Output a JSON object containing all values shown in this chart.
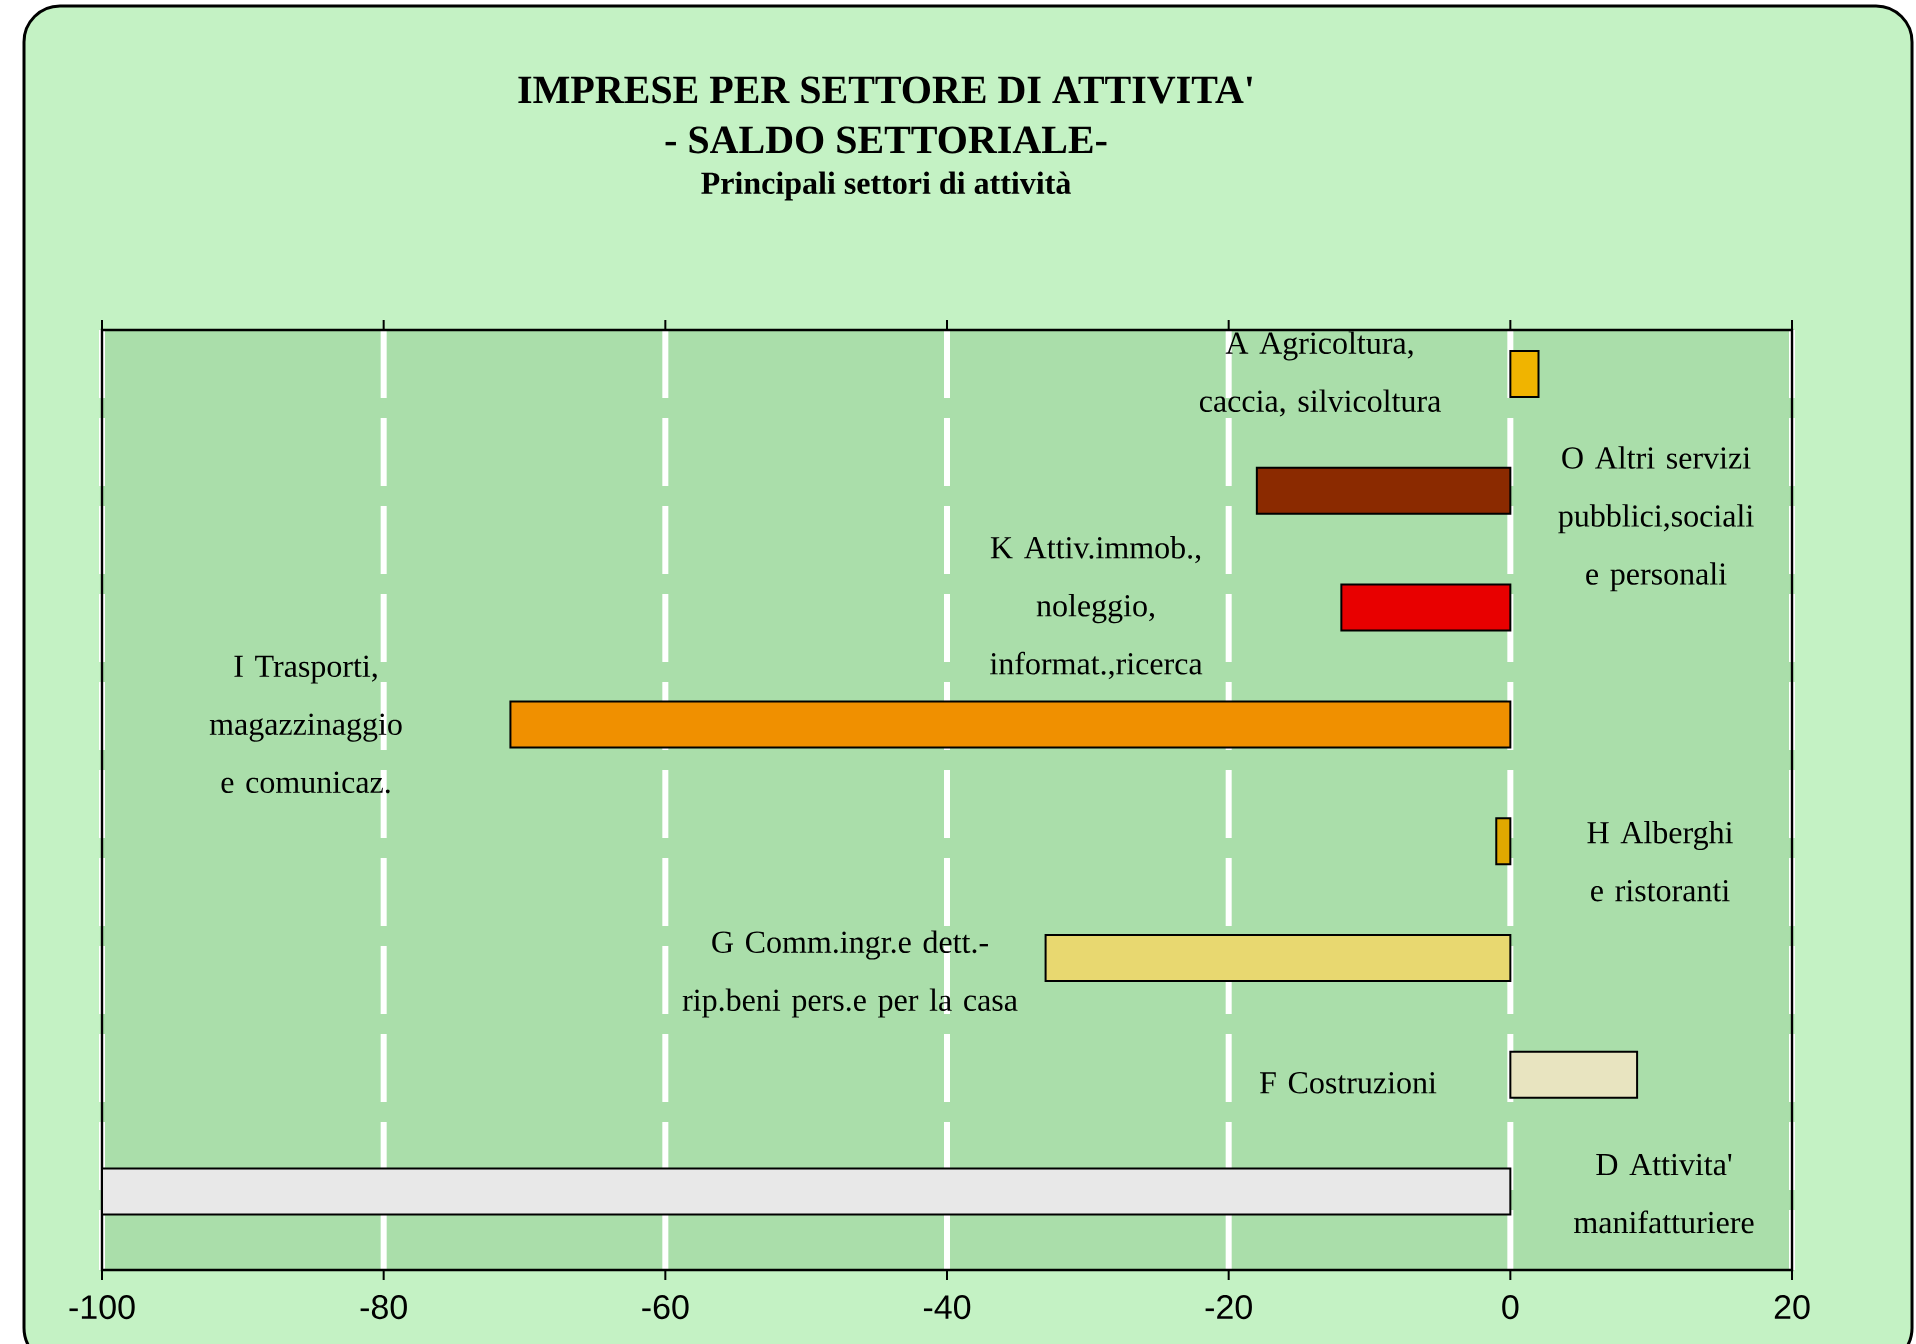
{
  "chart_data": {
    "type": "bar",
    "orientation": "horizontal",
    "title": "IMPRESE PER SETTORE DI ATTIVITA'",
    "subtitle": "- SALDO SETTORIALE-",
    "annotations": [
      "Principali settori di attività"
    ],
    "categories": [
      "A  Agricoltura, caccia, silvicoltura",
      "O  Altri servizi pubblici,sociali e personali",
      "K  Attiv.immob., noleggio, informat.,ricerca",
      "I Trasporti, magazzinaggio e comunicaz.",
      "H   Alberghi e ristoranti",
      "G   Comm.ingr.e dett.-rip.beni pers.e per la casa",
      "F Costruzioni",
      "D Attivita' manifatturiere"
    ],
    "values": [
      2,
      -18,
      -12,
      -71,
      -1,
      -33,
      9,
      -100
    ],
    "colors": [
      "#f0b400",
      "#8b2a00",
      "#e80000",
      "#f09000",
      "#e0a800",
      "#e8d870",
      "#e8e4c0",
      "#e8e8e8"
    ],
    "xlim": [
      -100,
      20
    ],
    "xticks": [
      -100,
      -80,
      -60,
      -40,
      -20,
      0,
      20
    ],
    "grid": "x"
  }
}
